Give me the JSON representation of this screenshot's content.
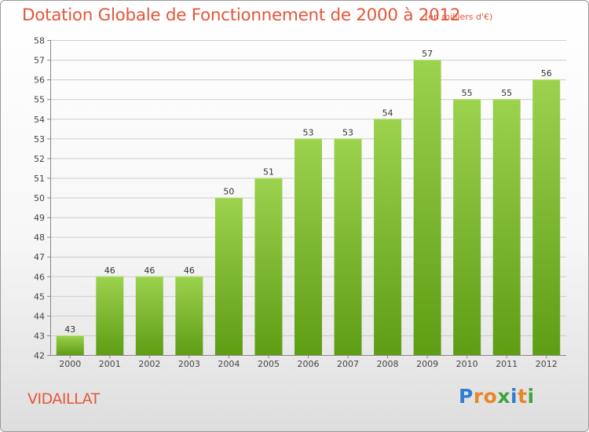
{
  "header": {
    "title": "Dotation Globale de Fonctionnement de 2000 à 2012",
    "unit": "(en milliers d'€)"
  },
  "commune": "VIDAILLAT",
  "logo": {
    "text": "Proxiti",
    "letters": [
      {
        "ch": "P",
        "color": "#2f7fd0"
      },
      {
        "ch": "r",
        "color": "#e8862a"
      },
      {
        "ch": "o",
        "color": "#e8862a"
      },
      {
        "ch": "x",
        "color": "#3ea43e"
      },
      {
        "ch": "i",
        "color": "#2f7fd0"
      },
      {
        "ch": "t",
        "color": "#e8862a"
      },
      {
        "ch": "i",
        "color": "#3ea43e"
      }
    ]
  },
  "colors": {
    "title": "#e2573b",
    "bar_light": "#9cd24e",
    "bar_dark": "#5e9d14",
    "grid": "#cccccc",
    "axis": "#888888"
  },
  "chart_data": {
    "type": "bar",
    "categories": [
      "2000",
      "2001",
      "2002",
      "2003",
      "2004",
      "2005",
      "2006",
      "2007",
      "2008",
      "2009",
      "2010",
      "2011",
      "2012"
    ],
    "values": [
      43,
      46,
      46,
      46,
      50,
      51,
      53,
      53,
      54,
      57,
      55,
      55,
      56
    ],
    "data_labels": [
      "43",
      "46",
      "46",
      "46",
      "50",
      "51",
      "53",
      "53",
      "54",
      "57",
      "55",
      "55",
      "56"
    ],
    "title": "Dotation Globale de Fonctionnement de 2000 à 2012",
    "xlabel": "",
    "ylabel": "",
    "ylim": [
      42,
      58
    ],
    "yticks": [
      42,
      43,
      44,
      45,
      46,
      47,
      48,
      49,
      50,
      51,
      52,
      53,
      54,
      55,
      56,
      57,
      58
    ],
    "grid": true,
    "legend": "none"
  }
}
